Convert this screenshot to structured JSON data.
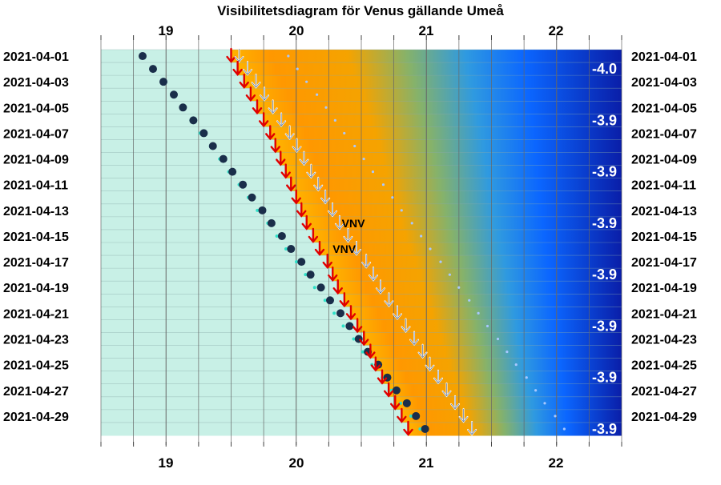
{
  "chart_data": {
    "type": "scatter",
    "title": "Visibilitetsdiagram för Venus gällande Umeå",
    "x_ticks": [
      19,
      20,
      21,
      22
    ],
    "xlim": [
      18.5,
      22.5
    ],
    "date_labels": [
      "2021-04-01",
      "2021-04-03",
      "2021-04-05",
      "2021-04-07",
      "2021-04-09",
      "2021-04-11",
      "2021-04-13",
      "2021-04-15",
      "2021-04-17",
      "2021-04-19",
      "2021-04-21",
      "2021-04-23",
      "2021-04-25",
      "2021-04-27",
      "2021-04-29"
    ],
    "days": [
      "2021-04-01",
      "2021-04-02",
      "2021-04-03",
      "2021-04-04",
      "2021-04-05",
      "2021-04-06",
      "2021-04-07",
      "2021-04-08",
      "2021-04-09",
      "2021-04-10",
      "2021-04-11",
      "2021-04-12",
      "2021-04-13",
      "2021-04-14",
      "2021-04-15",
      "2021-04-16",
      "2021-04-17",
      "2021-04-18",
      "2021-04-19",
      "2021-04-20",
      "2021-04-21",
      "2021-04-22",
      "2021-04-23",
      "2021-04-24",
      "2021-04-25",
      "2021-04-26",
      "2021-04-27",
      "2021-04-28",
      "2021-04-29",
      "2021-04-30"
    ],
    "series": [
      {
        "values": [
          18.82,
          18.9,
          18.98,
          19.06,
          19.13,
          19.21,
          19.29,
          19.36,
          19.44,
          19.51,
          19.59,
          19.66,
          19.74,
          19.81,
          19.89,
          19.96,
          20.04,
          20.11,
          20.19,
          20.26,
          20.34,
          20.41,
          20.48,
          20.55,
          20.63,
          20.7,
          20.77,
          20.85,
          20.92,
          20.99
        ]
      },
      {
        "values": [
          19.5,
          19.55,
          19.6,
          19.65,
          19.7,
          19.75,
          19.8,
          19.84,
          19.88,
          19.92,
          19.96,
          20.0,
          20.04,
          20.08,
          20.13,
          20.18,
          20.24,
          20.28,
          20.32,
          20.37,
          20.42,
          20.47,
          20.52,
          20.57,
          20.61,
          20.66,
          20.71,
          20.76,
          20.81,
          20.86
        ]
      },
      {
        "values": [
          19.57,
          19.64,
          19.71,
          19.79,
          19.86,
          19.93,
          20.0,
          20.08,
          20.15,
          20.22,
          20.3,
          20.37,
          20.44,
          20.52,
          20.59,
          20.66,
          20.74,
          20.81,
          20.88,
          20.96,
          21.03,
          21.1,
          21.18,
          21.25,
          21.32,
          21.4,
          21.47,
          21.54,
          21.62,
          21.69
        ]
      }
    ],
    "magnitudes": [
      {
        "date": "2021-04-02",
        "value": "-4.0"
      },
      {
        "date": "2021-04-06",
        "value": "-3.9"
      },
      {
        "date": "2021-04-10",
        "value": "-3.9"
      },
      {
        "date": "2021-04-14",
        "value": "-3.9"
      },
      {
        "date": "2021-04-18",
        "value": "-3.9"
      },
      {
        "date": "2021-04-22",
        "value": "-3.9"
      },
      {
        "date": "2021-04-26",
        "value": "-3.9"
      },
      {
        "date": "2021-04-30",
        "value": "-3.9"
      }
    ],
    "annotations": [
      {
        "text": "VNV",
        "date": "2021-04-14",
        "x": 20.35
      },
      {
        "text": "VNV",
        "date": "2021-04-16",
        "x": 20.28
      }
    ],
    "colors": {
      "day_sky": "#c8f0e6",
      "dot": "#1a2e4a",
      "set_arrow": "#e00000",
      "rise_arrow": "#ffffff",
      "orange": "#ff9800",
      "blue": "#0033ff",
      "deep_blue": "#001a8c"
    }
  }
}
